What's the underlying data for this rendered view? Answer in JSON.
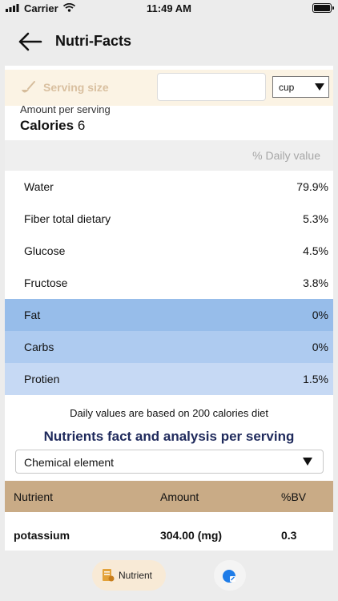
{
  "status_bar": {
    "carrier": "Carrier",
    "time": "11:49 AM"
  },
  "header": {
    "title": "Nutri-Facts"
  },
  "serving": {
    "label": "Serving size",
    "input_value": "",
    "unit": "cup"
  },
  "amount": {
    "label": "Amount per serving",
    "calories_label": "Calories",
    "calories_value": "6"
  },
  "daily_value_header": "% Daily value",
  "nutrients": [
    {
      "name": "Water",
      "value": "79.9%"
    },
    {
      "name": "Fiber total dietary",
      "value": "5.3%"
    },
    {
      "name": "Glucose",
      "value": "4.5%"
    },
    {
      "name": "Fructose",
      "value": "3.8%"
    },
    {
      "name": "Fat",
      "value": "0%"
    },
    {
      "name": "Carbs",
      "value": "0%"
    },
    {
      "name": "Protien",
      "value": "1.5%"
    }
  ],
  "colors": {
    "fat_row": "#97bdea",
    "carbs_row": "#aecbf0",
    "protein_row": "#c6d9f4",
    "table_header": "#c9ab86",
    "accent_title": "#1f2a5c"
  },
  "note": "Daily values are based on 200 calories diet",
  "analysis": {
    "title": "Nutrients fact and analysis per serving",
    "select_value": "Chemical element",
    "columns": [
      "Nutrient",
      "Amount",
      "%BV"
    ],
    "rows": [
      {
        "nutrient": "potassium",
        "amount": "304.00 (mg)",
        "bv": "0.3"
      }
    ]
  },
  "tabs": {
    "nutrient_label": "Nutrient",
    "nutrient_icon": "document-icon",
    "other_icon": "edit-icon"
  }
}
